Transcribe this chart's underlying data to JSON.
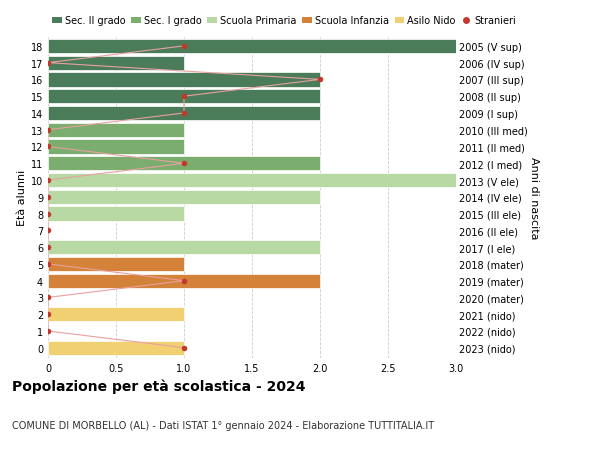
{
  "ages": [
    18,
    17,
    16,
    15,
    14,
    13,
    12,
    11,
    10,
    9,
    8,
    7,
    6,
    5,
    4,
    3,
    2,
    1,
    0
  ],
  "right_labels": [
    "2005 (V sup)",
    "2006 (IV sup)",
    "2007 (III sup)",
    "2008 (II sup)",
    "2009 (I sup)",
    "2010 (III med)",
    "2011 (II med)",
    "2012 (I med)",
    "2013 (V ele)",
    "2014 (IV ele)",
    "2015 (III ele)",
    "2016 (II ele)",
    "2017 (I ele)",
    "2018 (mater)",
    "2019 (mater)",
    "2020 (mater)",
    "2021 (nido)",
    "2022 (nido)",
    "2023 (nido)"
  ],
  "bar_values": [
    3.0,
    1.0,
    2.0,
    2.0,
    2.0,
    1.0,
    1.0,
    2.0,
    3.0,
    2.0,
    1.0,
    0.0,
    2.0,
    1.0,
    2.0,
    0.0,
    1.0,
    0.0,
    1.0
  ],
  "bar_colors": [
    "#4a7c59",
    "#4a7c59",
    "#4a7c59",
    "#4a7c59",
    "#4a7c59",
    "#7aad6e",
    "#7aad6e",
    "#7aad6e",
    "#b8d9a3",
    "#b8d9a3",
    "#b8d9a3",
    "#b8d9a3",
    "#b8d9a3",
    "#d4813a",
    "#d4813a",
    "#d4813a",
    "#f0d070",
    "#f0d070",
    "#f0d070"
  ],
  "stranieri_values": [
    1,
    0,
    2,
    1,
    1,
    0,
    0,
    1,
    0,
    0,
    0,
    0,
    0,
    0,
    1,
    0,
    0,
    0,
    1
  ],
  "legend_labels": [
    "Sec. II grado",
    "Sec. I grado",
    "Scuola Primaria",
    "Scuola Infanzia",
    "Asilo Nido",
    "Stranieri"
  ],
  "legend_colors": [
    "#4a7c59",
    "#7aad6e",
    "#b8d9a3",
    "#d4813a",
    "#f0d070",
    "#c0392b"
  ],
  "ylabel_left": "Età alunni",
  "ylabel_right": "Anni di nascita",
  "title": "Popolazione per età scolastica - 2024",
  "subtitle": "COMUNE DI MORBELLO (AL) - Dati ISTAT 1° gennaio 2024 - Elaborazione TUTTITALIA.IT",
  "xlim": [
    0,
    3.0
  ],
  "xticks": [
    0,
    0.5,
    1.0,
    1.5,
    2.0,
    2.5,
    3.0
  ],
  "bar_height": 0.85,
  "stranieri_color": "#c0392b",
  "stranieri_line_color": "#e8a0a0",
  "background_color": "#ffffff"
}
